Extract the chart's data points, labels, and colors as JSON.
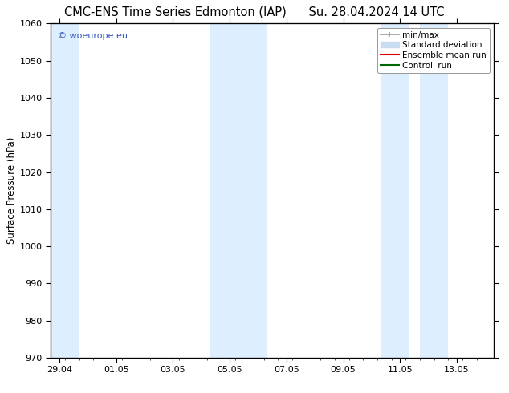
{
  "title_left": "CMC-ENS Time Series Edmonton (IAP)",
  "title_right": "Su. 28.04.2024 14 UTC",
  "ylabel": "Surface Pressure (hPa)",
  "ylim": [
    970,
    1060
  ],
  "yticks": [
    970,
    980,
    990,
    1000,
    1010,
    1020,
    1030,
    1040,
    1050,
    1060
  ],
  "x_tick_labels": [
    "29.04",
    "01.05",
    "03.05",
    "05.05",
    "07.05",
    "09.05",
    "11.05",
    "13.05"
  ],
  "x_tick_positions": [
    0,
    2,
    4,
    6,
    8,
    10,
    12,
    14
  ],
  "x_lim": [
    -0.3,
    15.3
  ],
  "shaded_bands": [
    {
      "x_start": -0.3,
      "x_end": 0.7,
      "color": "#ddeeff"
    },
    {
      "x_start": 5.3,
      "x_end": 7.3,
      "color": "#ddeeff"
    },
    {
      "x_start": 11.3,
      "x_end": 12.3,
      "color": "#ddeeff"
    },
    {
      "x_start": 12.7,
      "x_end": 13.7,
      "color": "#ddeeff"
    }
  ],
  "legend_entries": [
    {
      "label": "min/max",
      "color": "#999999",
      "lw": 1.2
    },
    {
      "label": "Standard deviation",
      "color": "#c8ddf0",
      "lw": 6
    },
    {
      "label": "Ensemble mean run",
      "color": "#dd0000",
      "lw": 1.5
    },
    {
      "label": "Controll run",
      "color": "#006600",
      "lw": 1.5
    }
  ],
  "watermark": "© woeurope.eu",
  "watermark_color": "#3355bb",
  "background_color": "#ffffff",
  "plot_bg_color": "#ffffff",
  "title_fontsize": 10.5,
  "label_fontsize": 8.5,
  "tick_fontsize": 8,
  "legend_fontsize": 7.5
}
